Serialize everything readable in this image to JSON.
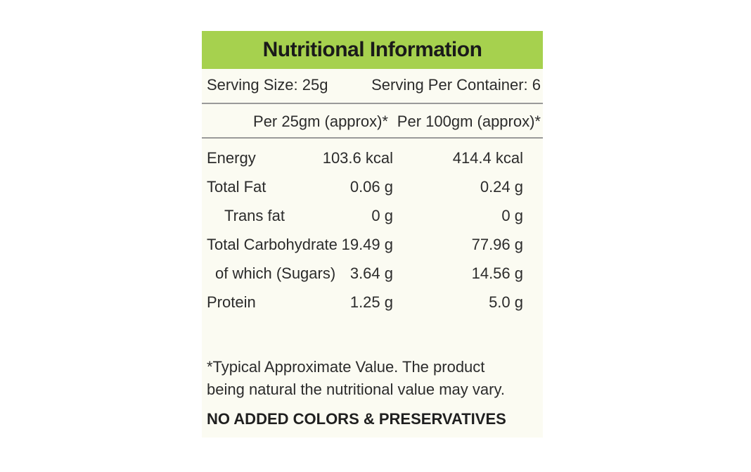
{
  "label": {
    "title": "Nutritional Information",
    "serving_size": "Serving Size: 25g",
    "servings_per_container": "Serving Per Container: 6",
    "columns": [
      "Per 25gm (approx)*",
      "Per 100gm (approx)*"
    ],
    "rows": [
      {
        "name": "Energy",
        "per_serving": "103.6 kcal",
        "per_100g": "414.4 kcal"
      },
      {
        "name": "Total Fat",
        "per_serving": "0.06 g",
        "per_100g": "0.24 g"
      },
      {
        "name": "Trans fat",
        "per_serving": "0 g",
        "per_100g": "0 g"
      },
      {
        "name": "Total Carbohydrate",
        "per_serving": "19.49 g",
        "per_100g": "77.96 g"
      },
      {
        "name": "of which (Sugars)",
        "per_serving": "3.64 g",
        "per_100g": "14.56 g"
      },
      {
        "name": "Protein",
        "per_serving": "1.25 g",
        "per_100g": "5.0 g"
      }
    ],
    "footnote_lines": [
      "*Typical Approximate Value. The product",
      "being natural the nutritional value may vary."
    ],
    "notice": "NO ADDED COLORS & PRESERVATIVES"
  },
  "colors": {
    "header_bg": "#a6d14e",
    "panel_bg": "#fbfbf2",
    "rule": "#9a9a9a",
    "text": "#2b2b2b"
  }
}
